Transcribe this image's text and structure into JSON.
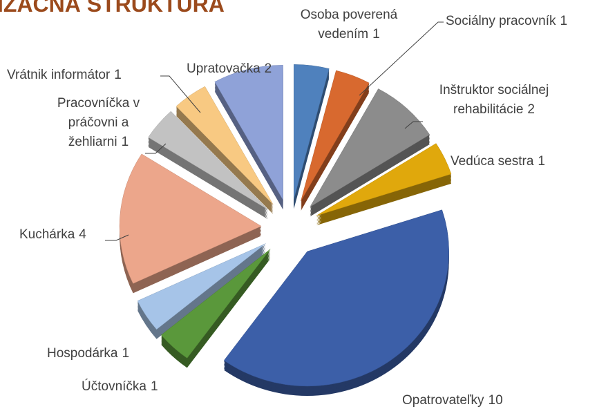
{
  "chart_data": {
    "type": "pie",
    "title": "IZAČNÁ ŠTRUKTÚRA",
    "categories": [
      "Osoba poverená vedením",
      "Sociálny pracovník",
      "Inštruktor sociálnej rehabilitácie",
      "Vedúca sestra",
      "Opatrovateľky",
      "Účtovníčka",
      "Hospodárka",
      "Kuchárka",
      "Pracovníčka v práčovni a žehliarni",
      "Vrátnik informátor",
      "Upratovačka"
    ],
    "values": [
      1,
      1,
      2,
      1,
      10,
      1,
      1,
      4,
      1,
      1,
      2
    ],
    "colors": [
      "#4f81bd",
      "#d8692f",
      "#8c8c8c",
      "#e0a80c",
      "#3c5fa8",
      "#5a983b",
      "#a6c4e8",
      "#eca68b",
      "#c2c2c2",
      "#f8c982",
      "#8fa2d8"
    ]
  }
}
